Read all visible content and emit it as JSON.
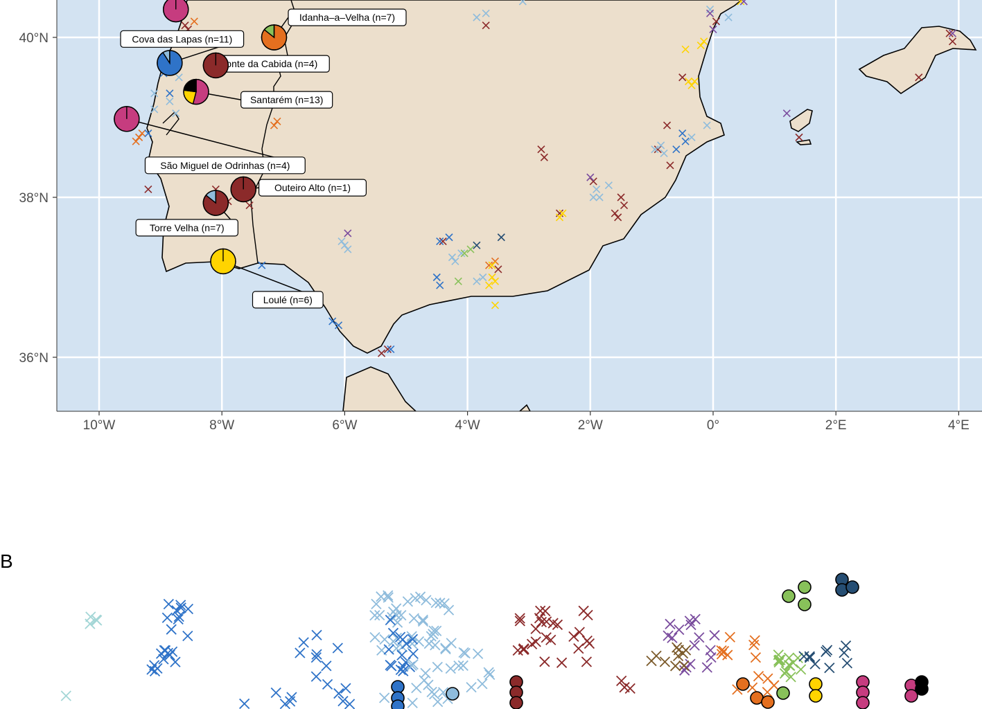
{
  "panel_b": {
    "letter": "B"
  },
  "map": {
    "x_axis": {
      "ticks": [
        {
          "value": -10,
          "label": "10°W"
        },
        {
          "value": -8,
          "label": "8°W"
        },
        {
          "value": -6,
          "label": "6°W"
        },
        {
          "value": -4,
          "label": "4°W"
        },
        {
          "value": -2,
          "label": "2°W"
        },
        {
          "value": 0,
          "label": "0°"
        },
        {
          "value": 2,
          "label": "2°E"
        },
        {
          "value": 4,
          "label": "4°E"
        }
      ]
    },
    "y_axis": {
      "ticks": [
        {
          "value": 40,
          "label": "40°N"
        },
        {
          "value": 38,
          "label": "38°N"
        },
        {
          "value": 36,
          "label": "36°N"
        }
      ]
    },
    "colors": {
      "sea": "#d3e3f2",
      "land": "#ecdfcc",
      "grid": "#ffffff",
      "coast": "#000000",
      "maroon": "#8b2a2a",
      "pink": "#c63c7f",
      "blue": "#2f73c8",
      "lightblue": "#8fbcdc",
      "orange": "#e46f1f",
      "yellow": "#ffd400",
      "green": "#88c15a",
      "purple": "#7a4c9e",
      "navy": "#264e73",
      "teal": "#a3d6d6",
      "brown": "#7b5a2a",
      "black": "#000000"
    },
    "sites": [
      {
        "name": "Idanha–a–Velha (n=7)",
        "lon": -7.15,
        "lat": 40.0,
        "slices": [
          {
            "color": "orange",
            "frac": 0.857
          },
          {
            "color": "green",
            "frac": 0.143
          }
        ],
        "label_lon": -5.0,
        "label_lat": 40.25,
        "label_anchor": "right"
      },
      {
        "name": "Cova das Lapas (n=11)",
        "lon": -8.85,
        "lat": 39.68,
        "slices": [
          {
            "color": "blue",
            "frac": 0.909
          },
          {
            "color": "lightblue",
            "frac": 0.091
          }
        ],
        "label_lon": -9.65,
        "label_lat": 39.98,
        "label_anchor": "left"
      },
      {
        "name": "Monte da Cabida (n=4)",
        "lon": -8.1,
        "lat": 39.65,
        "slices": [
          {
            "color": "maroon",
            "frac": 1.0
          }
        ],
        "label_lon": -6.25,
        "label_lat": 39.67,
        "label_anchor": "right"
      },
      {
        "name": "Santarém (n=13)",
        "lon": -8.42,
        "lat": 39.32,
        "slices": [
          {
            "color": "pink",
            "frac": 0.54
          },
          {
            "color": "yellow",
            "frac": 0.23
          },
          {
            "color": "black",
            "frac": 0.23
          }
        ],
        "label_lon": -6.2,
        "label_lat": 39.22,
        "label_anchor": "right"
      },
      {
        "name": "São Miguel de Odrinhas (n=4)",
        "lon": -9.55,
        "lat": 38.98,
        "slices": [
          {
            "color": "pink",
            "frac": 1.0
          }
        ],
        "label_lon": -9.25,
        "label_lat": 38.4,
        "label_anchor": "left"
      },
      {
        "name": "Outeiro Alto (n=1)",
        "lon": -7.65,
        "lat": 38.1,
        "slices": [
          {
            "color": "maroon",
            "frac": 1.0
          }
        ],
        "label_lon": -5.65,
        "label_lat": 38.12,
        "label_anchor": "right"
      },
      {
        "name": "Torre Velha (n=7)",
        "lon": -8.1,
        "lat": 37.93,
        "slices": [
          {
            "color": "maroon",
            "frac": 0.857
          },
          {
            "color": "lightblue",
            "frac": 0.143
          }
        ],
        "label_lon": -9.4,
        "label_lat": 37.62,
        "label_anchor": "left"
      },
      {
        "name": "Loulé (n=6)",
        "lon": -7.98,
        "lat": 37.2,
        "slices": [
          {
            "color": "yellow",
            "frac": 1.0
          }
        ],
        "label_lon": -7.5,
        "label_lat": 36.72,
        "label_anchor": "left"
      },
      {
        "name": "",
        "lon": -8.75,
        "lat": 40.35,
        "slices": [
          {
            "color": "pink",
            "frac": 1.0
          }
        ],
        "label_lon": null,
        "label_lat": null,
        "label_anchor": "none"
      }
    ],
    "crosses": [
      {
        "color": "maroon",
        "points": [
          [
            -8.6,
            40.15
          ],
          [
            -8.55,
            40.1
          ],
          [
            -3.7,
            40.15
          ],
          [
            -7.2,
            38.15
          ],
          [
            -8.1,
            38.1
          ],
          [
            -7.55,
            37.9
          ],
          [
            -7.9,
            37.95
          ],
          [
            -9.2,
            38.1
          ],
          [
            -4.4,
            37.45
          ],
          [
            -3.5,
            37.1
          ],
          [
            -2.8,
            38.6
          ],
          [
            -2.75,
            38.5
          ],
          [
            -2.5,
            37.8
          ],
          [
            -1.95,
            38.2
          ],
          [
            -1.6,
            37.8
          ],
          [
            -1.5,
            38.0
          ],
          [
            -1.45,
            37.9
          ],
          [
            -1.55,
            37.75
          ],
          [
            -0.5,
            39.5
          ],
          [
            -0.75,
            38.9
          ],
          [
            -0.9,
            38.6
          ],
          [
            -0.7,
            38.4
          ],
          [
            0.05,
            40.2
          ],
          [
            3.85,
            40.05
          ],
          [
            3.9,
            39.95
          ],
          [
            1.4,
            38.75
          ],
          [
            3.35,
            39.5
          ],
          [
            -5.3,
            36.1
          ],
          [
            -5.4,
            36.05
          ]
        ]
      },
      {
        "color": "orange",
        "points": [
          [
            -8.45,
            40.2
          ],
          [
            -9.35,
            38.75
          ],
          [
            -9.4,
            38.7
          ],
          [
            -9.3,
            38.8
          ],
          [
            -7.15,
            38.9
          ],
          [
            -7.1,
            38.95
          ],
          [
            -3.65,
            37.15
          ],
          [
            -3.55,
            37.2
          ]
        ]
      },
      {
        "color": "blue",
        "points": [
          [
            -8.35,
            39.95
          ],
          [
            -8.95,
            39.55
          ],
          [
            -9.2,
            38.8
          ],
          [
            -8.85,
            39.3
          ],
          [
            -0.5,
            38.8
          ],
          [
            -0.45,
            38.7
          ],
          [
            -0.6,
            38.6
          ],
          [
            -4.45,
            37.45
          ],
          [
            -4.3,
            37.5
          ],
          [
            -4.5,
            37.0
          ],
          [
            -4.45,
            36.9
          ],
          [
            -6.2,
            36.45
          ],
          [
            -6.1,
            36.4
          ],
          [
            -5.25,
            36.1
          ],
          [
            -7.35,
            37.15
          ]
        ]
      },
      {
        "color": "lightblue",
        "points": [
          [
            -3.85,
            40.25
          ],
          [
            -3.7,
            40.3
          ],
          [
            -3.1,
            40.45
          ],
          [
            -8.7,
            39.5
          ],
          [
            -8.85,
            39.2
          ],
          [
            -9.1,
            39.3
          ],
          [
            -9.1,
            39.1
          ],
          [
            -8.75,
            39.05
          ],
          [
            -6.05,
            37.45
          ],
          [
            -6.0,
            37.4
          ],
          [
            -5.95,
            37.35
          ],
          [
            -4.25,
            37.25
          ],
          [
            -4.2,
            37.2
          ],
          [
            -4.1,
            37.3
          ],
          [
            -3.85,
            36.95
          ],
          [
            -3.75,
            37.0
          ],
          [
            -1.9,
            38.1
          ],
          [
            -1.85,
            38.0
          ],
          [
            -1.95,
            38.0
          ],
          [
            -0.85,
            38.65
          ],
          [
            -0.95,
            38.6
          ],
          [
            -0.8,
            38.55
          ],
          [
            -0.35,
            38.75
          ],
          [
            -0.1,
            38.9
          ],
          [
            -0.05,
            40.35
          ],
          [
            0.25,
            40.25
          ],
          [
            -7.5,
            38.45
          ],
          [
            -7.65,
            38.35
          ],
          [
            -1.7,
            38.15
          ]
        ]
      },
      {
        "color": "yellow",
        "points": [
          [
            -0.45,
            39.85
          ],
          [
            -0.4,
            39.45
          ],
          [
            -0.35,
            39.4
          ],
          [
            -0.3,
            39.45
          ],
          [
            -0.2,
            39.9
          ],
          [
            -0.15,
            39.95
          ],
          [
            0.45,
            40.45
          ],
          [
            -2.5,
            37.75
          ],
          [
            -2.45,
            37.8
          ],
          [
            -3.6,
            37.0
          ],
          [
            -3.55,
            36.95
          ],
          [
            -3.65,
            36.9
          ],
          [
            -3.55,
            36.65
          ],
          [
            -3.6,
            37.15
          ]
        ]
      },
      {
        "color": "green",
        "points": [
          [
            -3.95,
            37.35
          ],
          [
            -4.05,
            37.3
          ],
          [
            -4.15,
            36.95
          ]
        ]
      },
      {
        "color": "purple",
        "points": [
          [
            -5.95,
            37.55
          ],
          [
            -2.0,
            38.25
          ],
          [
            -0.05,
            40.3
          ],
          [
            0.0,
            40.1
          ],
          [
            1.2,
            39.05
          ],
          [
            3.9,
            40.05
          ],
          [
            0.5,
            40.45
          ]
        ]
      },
      {
        "color": "navy",
        "points": [
          [
            -3.45,
            37.5
          ],
          [
            -3.85,
            37.4
          ]
        ]
      }
    ],
    "islands": "coast"
  }
}
